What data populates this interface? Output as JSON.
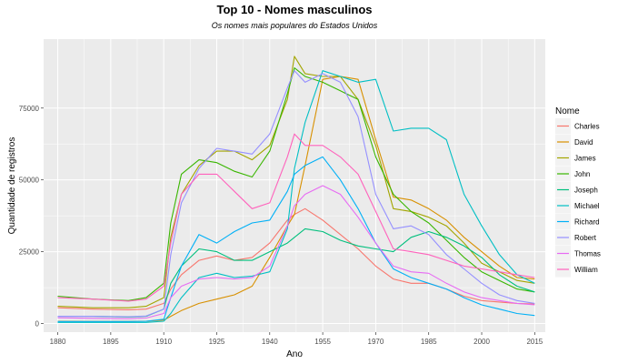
{
  "chart_data": {
    "type": "line",
    "title": "Top 10 - Nomes masculinos",
    "subtitle": "Os nomes mais populares do Estados Unidos",
    "xlabel": "Ano",
    "ylabel": "Quantidade de registros",
    "xlim": [
      1876,
      2018
    ],
    "ylim": [
      -3000,
      99000
    ],
    "xticks": [
      1880,
      1895,
      1910,
      1925,
      1940,
      1955,
      1970,
      1985,
      2000,
      2015
    ],
    "yticks": [
      0,
      25000,
      50000,
      75000
    ],
    "ytick_labels": [
      "0",
      "25000",
      "50000",
      "75000"
    ],
    "grid": true,
    "legend": {
      "title": "Nome",
      "position": "right"
    },
    "series": [
      {
        "name": "Charles",
        "color": "#F8766D",
        "x": [
          1880,
          1890,
          1900,
          1905,
          1910,
          1912,
          1915,
          1920,
          1925,
          1930,
          1935,
          1940,
          1945,
          1947,
          1950,
          1955,
          1960,
          1965,
          1970,
          1975,
          1980,
          1985,
          1990,
          1995,
          2000,
          2005,
          2010,
          2015
        ],
        "y": [
          5500,
          5000,
          4800,
          5000,
          7000,
          12000,
          17000,
          22000,
          23500,
          22000,
          23000,
          28000,
          36000,
          38000,
          40000,
          36000,
          31000,
          26000,
          20000,
          15500,
          14000,
          14000,
          12000,
          9500,
          8000,
          7500,
          7000,
          6800
        ]
      },
      {
        "name": "David",
        "color": "#D89000",
        "x": [
          1880,
          1890,
          1900,
          1905,
          1910,
          1912,
          1915,
          1920,
          1925,
          1930,
          1935,
          1940,
          1945,
          1947,
          1950,
          1955,
          1960,
          1965,
          1970,
          1975,
          1980,
          1985,
          1990,
          1995,
          2000,
          2005,
          2010,
          2015
        ],
        "y": [
          800,
          700,
          700,
          800,
          1200,
          2500,
          4500,
          7000,
          8500,
          10000,
          13000,
          23000,
          34000,
          38000,
          55000,
          85000,
          86000,
          85000,
          64000,
          44000,
          43000,
          40000,
          36000,
          30000,
          25000,
          20000,
          16000,
          15500
        ]
      },
      {
        "name": "James",
        "color": "#A3A500",
        "x": [
          1880,
          1890,
          1900,
          1905,
          1910,
          1912,
          1915,
          1920,
          1925,
          1930,
          1935,
          1940,
          1945,
          1947,
          1950,
          1955,
          1960,
          1965,
          1970,
          1975,
          1980,
          1985,
          1990,
          1995,
          2000,
          2005,
          2010,
          2015
        ],
        "y": [
          6000,
          5500,
          5500,
          6000,
          9000,
          30000,
          45000,
          55000,
          60000,
          60000,
          57000,
          62000,
          78000,
          93000,
          87000,
          86000,
          86000,
          78000,
          62000,
          40000,
          39000,
          37000,
          34000,
          28000,
          21000,
          18000,
          15000,
          14000
        ]
      },
      {
        "name": "John",
        "color": "#39B600",
        "x": [
          1880,
          1890,
          1900,
          1905,
          1910,
          1912,
          1915,
          1920,
          1925,
          1930,
          1935,
          1940,
          1945,
          1947,
          1950,
          1955,
          1960,
          1965,
          1970,
          1975,
          1980,
          1985,
          1990,
          1995,
          2000,
          2005,
          2010,
          2015
        ],
        "y": [
          9500,
          8500,
          8000,
          9000,
          14000,
          35000,
          52000,
          57000,
          56000,
          53000,
          51000,
          60000,
          80000,
          89000,
          86000,
          84000,
          81000,
          78000,
          58000,
          45000,
          39000,
          35000,
          29000,
          23000,
          18000,
          15000,
          12000,
          11000
        ]
      },
      {
        "name": "Joseph",
        "color": "#00BF7D",
        "x": [
          1880,
          1890,
          1900,
          1905,
          1910,
          1912,
          1915,
          1920,
          1925,
          1930,
          1935,
          1940,
          1945,
          1947,
          1950,
          1955,
          1960,
          1965,
          1970,
          1975,
          1980,
          1985,
          1990,
          1995,
          2000,
          2005,
          2010,
          2015
        ],
        "y": [
          2500,
          2500,
          2300,
          2500,
          5000,
          14000,
          20000,
          26000,
          25000,
          22000,
          22000,
          25000,
          28000,
          30000,
          33000,
          32000,
          29000,
          27000,
          26000,
          25000,
          30000,
          32000,
          30000,
          27000,
          23000,
          17000,
          13000,
          11000
        ]
      },
      {
        "name": "Michael",
        "color": "#00BFC4",
        "x": [
          1880,
          1890,
          1900,
          1905,
          1910,
          1912,
          1915,
          1920,
          1925,
          1930,
          1935,
          1940,
          1945,
          1947,
          1950,
          1955,
          1960,
          1965,
          1970,
          1975,
          1980,
          1985,
          1990,
          1995,
          2000,
          2005,
          2010,
          2015
        ],
        "y": [
          400,
          400,
          400,
          400,
          800,
          3500,
          9000,
          16000,
          17500,
          16000,
          16500,
          18000,
          33000,
          54000,
          70000,
          88000,
          86000,
          84000,
          85000,
          67000,
          68000,
          68000,
          64000,
          45000,
          34000,
          24000,
          17000,
          14000
        ]
      },
      {
        "name": "Richard",
        "color": "#00B0F6",
        "x": [
          1880,
          1890,
          1900,
          1905,
          1910,
          1912,
          1915,
          1920,
          1925,
          1930,
          1935,
          1940,
          1945,
          1947,
          1950,
          1955,
          1960,
          1965,
          1970,
          1975,
          1980,
          1985,
          1990,
          1995,
          2000,
          2005,
          2010,
          2015
        ],
        "y": [
          700,
          700,
          700,
          800,
          1500,
          9000,
          20000,
          31000,
          28000,
          32000,
          35000,
          36000,
          46000,
          52000,
          55000,
          58000,
          50000,
          40000,
          28000,
          19000,
          16000,
          14000,
          12000,
          9000,
          6500,
          5000,
          3500,
          2800
        ]
      },
      {
        "name": "Robert",
        "color": "#9590FF",
        "x": [
          1880,
          1890,
          1900,
          1905,
          1910,
          1912,
          1915,
          1920,
          1925,
          1930,
          1935,
          1940,
          1945,
          1947,
          1950,
          1955,
          1960,
          1965,
          1970,
          1975,
          1980,
          1985,
          1990,
          1995,
          2000,
          2005,
          2010,
          2015
        ],
        "y": [
          2500,
          2500,
          2400,
          2600,
          5000,
          24000,
          42000,
          54000,
          61000,
          60000,
          59000,
          66000,
          82000,
          88000,
          84000,
          87000,
          84000,
          72000,
          45000,
          33000,
          34000,
          31000,
          24000,
          19000,
          14000,
          10000,
          8000,
          7000
        ]
      },
      {
        "name": "Thomas",
        "color": "#E76BF3",
        "x": [
          1880,
          1890,
          1900,
          1905,
          1910,
          1912,
          1915,
          1920,
          1925,
          1930,
          1935,
          1940,
          1945,
          1947,
          1950,
          1955,
          1960,
          1965,
          1970,
          1975,
          1980,
          1985,
          1990,
          1995,
          2000,
          2005,
          2010,
          2015
        ],
        "y": [
          2000,
          1800,
          1700,
          1900,
          3500,
          9000,
          13000,
          15500,
          16000,
          15500,
          16000,
          20000,
          34000,
          41000,
          45000,
          48000,
          45000,
          37000,
          28000,
          20000,
          18000,
          17500,
          14000,
          11000,
          9000,
          8000,
          7000,
          6500
        ]
      },
      {
        "name": "William",
        "color": "#FF62BC",
        "x": [
          1880,
          1890,
          1900,
          1905,
          1910,
          1912,
          1915,
          1920,
          1925,
          1930,
          1935,
          1940,
          1945,
          1947,
          1950,
          1955,
          1960,
          1965,
          1970,
          1975,
          1980,
          1985,
          1990,
          1995,
          2000,
          2005,
          2010,
          2015
        ],
        "y": [
          9000,
          8500,
          7800,
          8500,
          13000,
          28000,
          45000,
          52000,
          52000,
          46000,
          40000,
          42000,
          58000,
          66000,
          62000,
          62000,
          58000,
          52000,
          39000,
          26000,
          25000,
          24000,
          22000,
          20000,
          19000,
          18000,
          17000,
          16000
        ]
      }
    ]
  }
}
